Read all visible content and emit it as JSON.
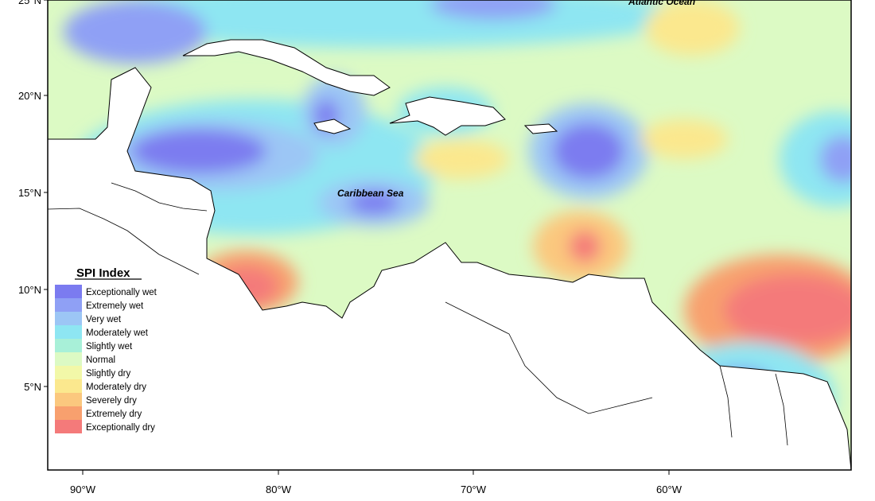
{
  "map": {
    "sea_labels": {
      "caribbean": "Caribbean Sea",
      "atlantic": "Atlantic Ocean"
    },
    "lat_ticks": [
      "25°N",
      "20°N",
      "15°N",
      "10°N",
      "5°N"
    ],
    "lon_ticks": [
      "90°W",
      "80°W",
      "70°W",
      "60°W"
    ]
  },
  "legend": {
    "title": "SPI Index",
    "items": [
      {
        "label": "Exceptionally wet",
        "color": "#7b7bf0"
      },
      {
        "label": "Extremely wet",
        "color": "#8fa0f5"
      },
      {
        "label": "Very wet",
        "color": "#9cc6f5"
      },
      {
        "label": "Moderately wet",
        "color": "#8ee6f2"
      },
      {
        "label": "Slightly wet",
        "color": "#a8f0d8"
      },
      {
        "label": "Normal",
        "color": "#dcfac4"
      },
      {
        "label": "Slightly dry",
        "color": "#f2f8a8"
      },
      {
        "label": "Moderately dry",
        "color": "#fbe88e"
      },
      {
        "label": "Severely dry",
        "color": "#fbc87e"
      },
      {
        "label": "Extremely dry",
        "color": "#f8a06e"
      },
      {
        "label": "Exceptionally dry",
        "color": "#f47a7a"
      }
    ]
  }
}
